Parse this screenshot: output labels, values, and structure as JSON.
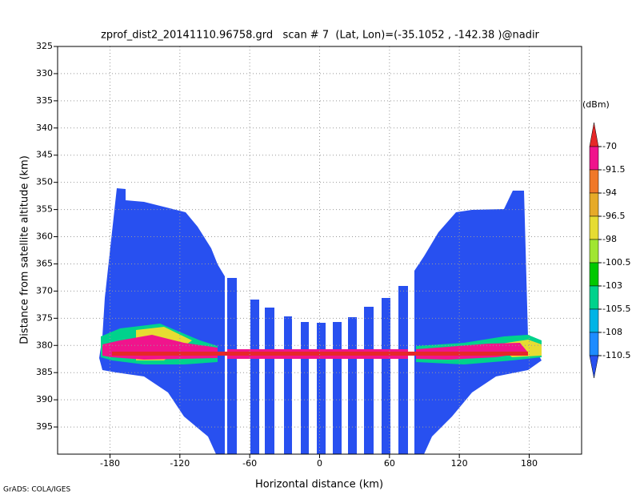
{
  "chart_data": {
    "type": "heatmap",
    "title": "zprof_dist2_20141110.96758.grd   scan # 7  (Lat, Lon)=(-35.1052 , -142.38 )@nadir",
    "x_label": "Horizontal distance (km)",
    "y_label": "Distance from satellite altitude (km)",
    "xlim": [
      -225,
      225
    ],
    "ylim": [
      400,
      325
    ],
    "xticks": [
      -180,
      -120,
      -60,
      0,
      60,
      120,
      180
    ],
    "yticks": [
      325,
      330,
      335,
      340,
      345,
      350,
      355,
      360,
      365,
      370,
      375,
      380,
      385,
      390,
      395
    ],
    "grid": true,
    "colorbar": {
      "unit": "(dBm)",
      "levels": [
        -70,
        -91.5,
        -94,
        -96.5,
        -98,
        -100.5,
        -103,
        -105.5,
        -108,
        -110.5
      ],
      "colors": [
        "#e62828",
        "#f0148c",
        "#f07828",
        "#e6aa28",
        "#e6dc32",
        "#a0e632",
        "#00c800",
        "#00d28c",
        "#00b4e6",
        "#1e8cff",
        "#2850f0"
      ]
    },
    "credit": "GrADS: COLA/IGES"
  }
}
